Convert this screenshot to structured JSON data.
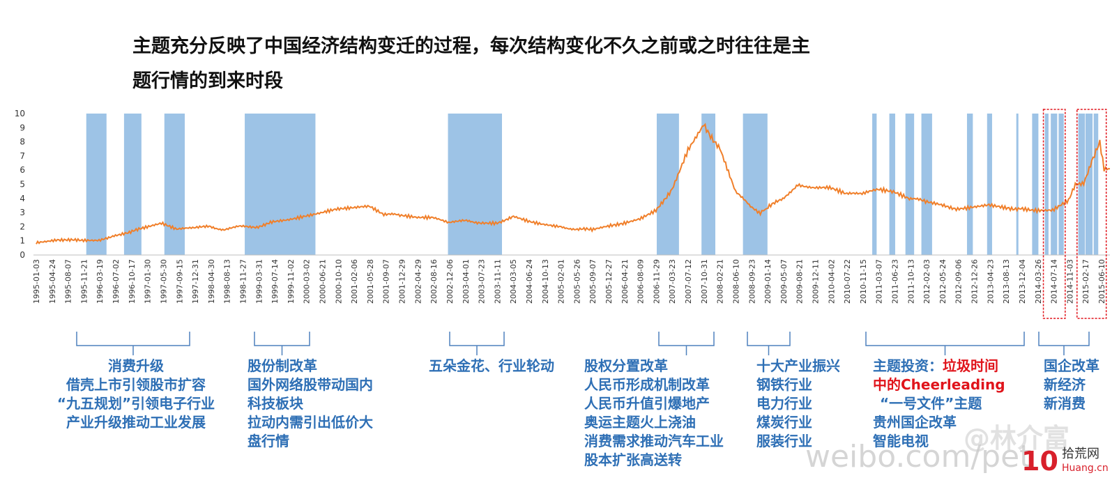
{
  "title_lines": [
    "主题充分反映了中国经济结构变迁的过程，每次结构变化不久之前或之时往往是主",
    "题行情的到来时段"
  ],
  "colors": {
    "line": "#f07f2a",
    "band": "#9dc3e6",
    "text_blue": "#2e6fb5",
    "text_red": "#e0141b",
    "highlight_box": "#e0141b"
  },
  "chart_data": {
    "type": "line",
    "title": "",
    "xlabel": "",
    "ylabel": "",
    "ylim": [
      0,
      10
    ],
    "yticks": [
      0,
      1,
      2,
      3,
      4,
      5,
      6,
      7,
      8,
      9,
      10
    ],
    "grid": false,
    "legend": "none",
    "xtick_labels": [
      "1995-01-03",
      "1995-04-24",
      "1995-08-07",
      "1995-11-21",
      "1996-03-19",
      "1996-07-02",
      "1996-10-17",
      "1997-01-30",
      "1997-05-30",
      "1997-09-15",
      "1997-12-31",
      "1998-04-30",
      "1998-08-13",
      "1998-11-27",
      "1999-03-31",
      "1999-07-14",
      "1999-11-02",
      "2000-03-02",
      "2000-06-21",
      "2000-10-10",
      "2001-02-06",
      "2001-05-28",
      "2001-09-07",
      "2001-12-29",
      "2002-04-29",
      "2002-08-16",
      "2002-12-06",
      "2003-04-01",
      "2003-07-23",
      "2003-11-11",
      "2004-03-05",
      "2004-06-24",
      "2004-10-13",
      "2005-02-01",
      "2005-05-26",
      "2005-09-07",
      "2005-12-27",
      "2006-04-21",
      "2006-08-09",
      "2006-11-29",
      "2007-03-23",
      "2007-07-12",
      "2007-10-31",
      "2008-02-21",
      "2008-06-10",
      "2008-09-23",
      "2009-01-14",
      "2009-05-07",
      "2009-08-21",
      "2009-12-11",
      "2010-04-02",
      "2010-07-22",
      "2010-11-15",
      "2011-03-07",
      "2011-06-23",
      "2011-10-13",
      "2012-02-03",
      "2012-05-24",
      "2012-09-06",
      "2012-12-26",
      "2013-04-23",
      "2013-08-13",
      "2013-12-04",
      "2014-03-26",
      "2014-07-14",
      "2014-11-03",
      "2015-02-17",
      "2015-06-10"
    ],
    "series": [
      {
        "x": [
          "1995-01-03",
          "1995-06-01",
          "1995-11-21",
          "1996-03-19",
          "1996-07-02",
          "1996-10-17",
          "1997-01-30",
          "1997-05-30",
          "1997-09-15",
          "1998-01-15",
          "1998-05-01",
          "1998-08-13",
          "1998-11-27",
          "1999-03-31",
          "1999-07-14",
          "1999-11-02",
          "2000-03-02",
          "2000-06-21",
          "2000-10-10",
          "2001-02-06",
          "2001-05-28",
          "2001-09-07",
          "2001-12-29",
          "2002-04-29",
          "2002-08-16",
          "2002-12-06",
          "2003-04-01",
          "2003-07-23",
          "2003-11-11",
          "2004-03-05",
          "2004-06-24",
          "2004-10-13",
          "2005-02-01",
          "2005-05-26",
          "2005-09-07",
          "2005-12-27",
          "2006-04-21",
          "2006-08-09",
          "2006-11-29",
          "2007-03-23",
          "2007-07-12",
          "2007-10-31",
          "2008-02-21",
          "2008-06-10",
          "2008-09-23",
          "2008-12-01",
          "2009-01-14",
          "2009-05-07",
          "2009-08-21",
          "2009-12-11",
          "2010-04-02",
          "2010-07-22",
          "2010-11-15",
          "2011-03-07",
          "2011-06-23",
          "2011-10-13",
          "2012-02-03",
          "2012-05-24",
          "2012-09-06",
          "2012-12-26",
          "2013-04-23",
          "2013-08-13",
          "2013-12-04",
          "2014-03-26",
          "2014-07-14",
          "2014-11-03",
          "2014-12-20",
          "2015-02-17",
          "2015-04-15",
          "2015-06-10",
          "2015-07-10",
          "2015-08-20"
        ],
        "values": [
          0.9,
          1.1,
          1.0,
          1.0,
          1.4,
          1.6,
          1.9,
          2.2,
          1.8,
          1.9,
          2.0,
          1.8,
          2.0,
          2.0,
          2.3,
          2.5,
          2.8,
          3.0,
          3.2,
          3.3,
          3.4,
          2.9,
          2.8,
          2.6,
          2.6,
          2.3,
          2.4,
          2.3,
          2.3,
          2.7,
          2.4,
          2.2,
          2.0,
          1.8,
          1.8,
          2.0,
          2.3,
          2.6,
          3.1,
          4.7,
          7.5,
          9.2,
          7.5,
          4.5,
          3.4,
          2.9,
          3.3,
          4.0,
          5.0,
          4.8,
          4.7,
          4.3,
          4.3,
          4.6,
          4.4,
          4.0,
          3.8,
          3.5,
          3.3,
          3.4,
          3.6,
          3.3,
          3.3,
          3.2,
          3.2,
          3.8,
          5.0,
          5.1,
          6.7,
          7.9,
          6.0,
          6.1
        ]
      }
    ],
    "shaded_periods": [
      [
        "1995-12-20",
        "1996-05-10"
      ],
      [
        "1996-09-10",
        "1997-01-10"
      ],
      [
        "1997-06-20",
        "1997-11-10"
      ],
      [
        "1999-01-05",
        "2000-05-15"
      ],
      [
        "2002-12-01",
        "2003-12-15"
      ],
      [
        "2006-12-05",
        "2007-05-10"
      ],
      [
        "2007-10-15",
        "2008-01-20"
      ],
      [
        "2008-08-01",
        "2009-01-20"
      ],
      [
        "2011-01-25",
        "2011-02-25"
      ],
      [
        "2011-05-25",
        "2011-07-05"
      ],
      [
        "2011-09-15",
        "2011-11-15"
      ],
      [
        "2012-01-05",
        "2012-03-20"
      ],
      [
        "2012-11-20",
        "2012-12-31"
      ],
      [
        "2013-04-10",
        "2013-05-15"
      ],
      [
        "2013-11-01",
        "2013-11-05"
      ],
      [
        "2014-02-20",
        "2014-04-05"
      ],
      [
        "2014-05-20",
        "2014-06-15"
      ],
      [
        "2014-07-01",
        "2014-08-15"
      ],
      [
        "2014-08-25",
        "2014-09-30"
      ],
      [
        "2015-01-10",
        "2015-02-25"
      ],
      [
        "2015-03-01",
        "2015-04-20"
      ],
      [
        "2015-04-28",
        "2015-05-30"
      ]
    ],
    "highlight_boxes": [
      [
        "2014-05-10",
        "2014-10-10"
      ],
      [
        "2015-01-01",
        "2015-07-25"
      ]
    ]
  },
  "annotation_groups": [
    {
      "lines": [
        "消费升级",
        "借壳上市引领股市扩容",
        "“九五规划”引领电子行业",
        "产业升级推动工业发展"
      ]
    },
    {
      "lines": [
        "股份制改革",
        "国外网络股带动国内",
        "科技板块",
        "拉动内需引出低价大",
        "盘行情"
      ]
    },
    {
      "lines": [
        "五朵金花、行业轮动"
      ]
    },
    {
      "lines": [
        "股权分置改革",
        "人民币形成机制改革",
        "人民币升值引爆地产",
        "奥运主题火上浇油",
        "消费需求推动汽车工业",
        "股本扩张高送转"
      ]
    },
    {
      "lines": [
        "十大产业振兴",
        "钢铁行业",
        "电力行业",
        "煤炭行业",
        "服装行业"
      ]
    },
    {
      "line1_prefix": "主题投资：",
      "line1_red": "垃圾时间",
      "line2_red": "中的Cheerleading",
      "lines": [
        "“一号文件”主题",
        "贵州国企改革",
        "智能电视"
      ]
    },
    {
      "lines": [
        "国企改革",
        "新经济",
        "新消费"
      ]
    }
  ],
  "watermarks": {
    "weibo": "weibo.com/pet",
    "handle": "@林介富",
    "logo_num": "10",
    "logo_cn": "拾荒网",
    "logo_site": "Huang.cn"
  }
}
